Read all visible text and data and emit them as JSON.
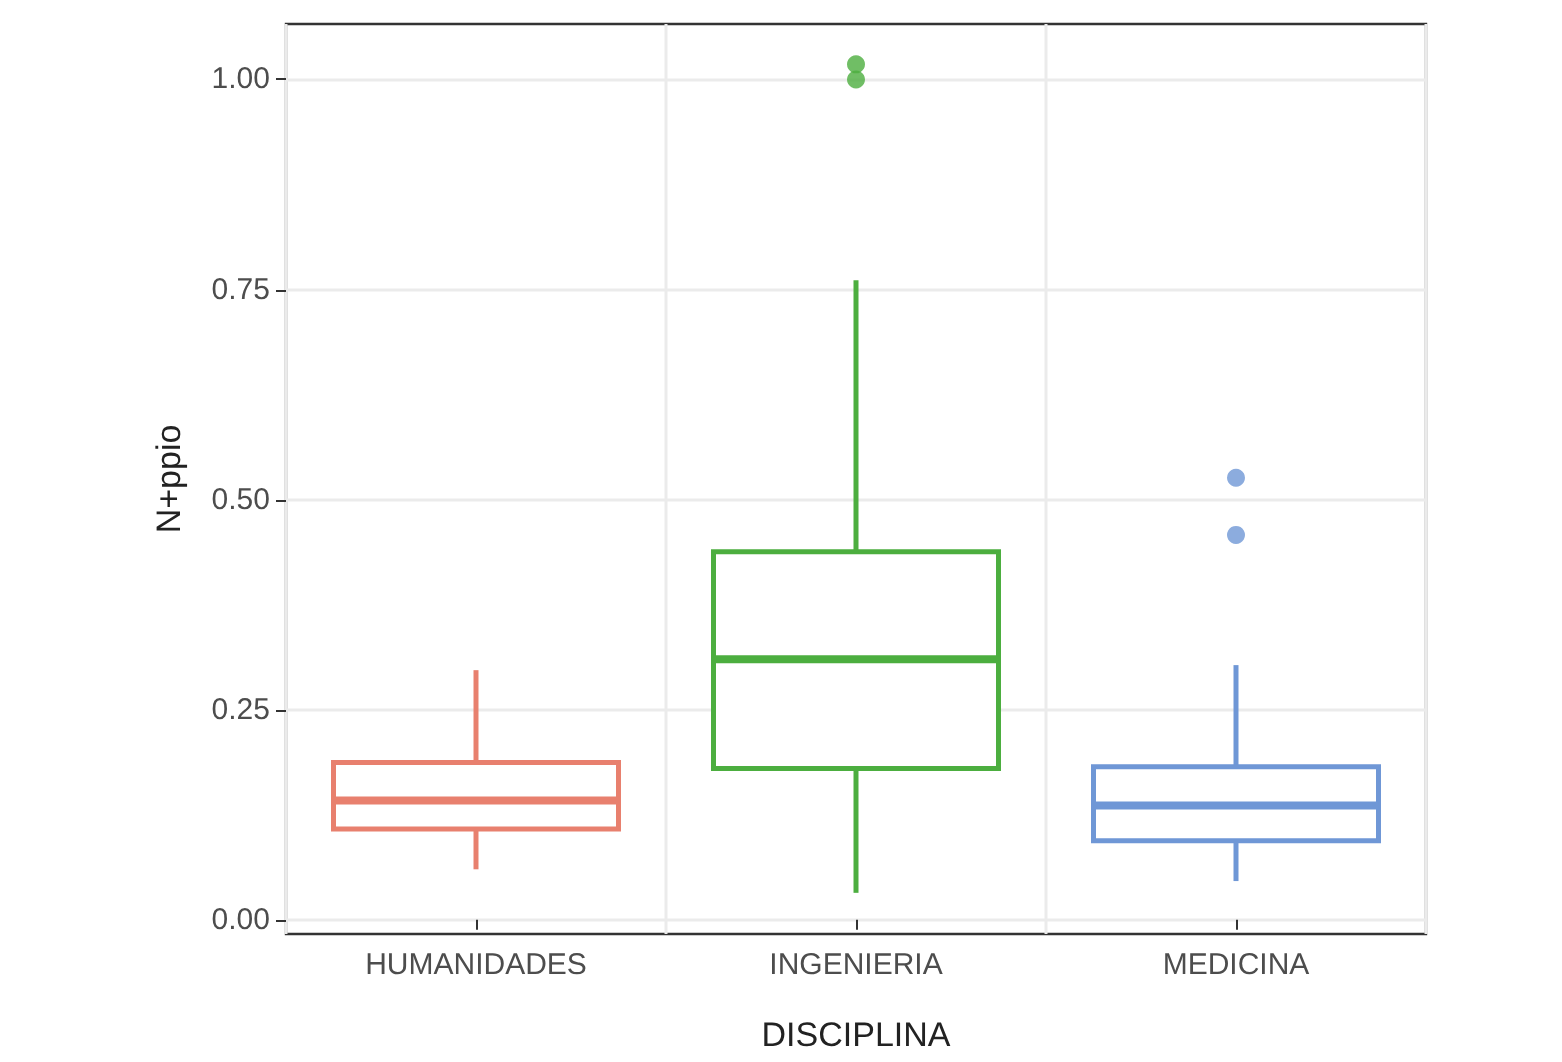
{
  "chart_data": {
    "type": "box",
    "xlabel": "DISCIPLINA",
    "ylabel": "N+ppio",
    "categories": [
      "HUMANIDADES",
      "INGENIERIA",
      "MEDICINA"
    ],
    "colors": [
      "#e8806e",
      "#4cae3f",
      "#6f97d6"
    ],
    "boxes": [
      {
        "low": 0.06,
        "q1": 0.108,
        "median": 0.142,
        "q3": 0.187,
        "high": 0.297
      },
      {
        "low": 0.032,
        "q1": 0.18,
        "median": 0.31,
        "q3": 0.438,
        "high": 0.761,
        "outliers": [
          1.0,
          1.018
        ]
      },
      {
        "low": 0.046,
        "q1": 0.094,
        "median": 0.136,
        "q3": 0.182,
        "high": 0.303,
        "outliers": [
          0.458,
          0.526
        ]
      }
    ],
    "ylim": [
      -0.017,
      1.066
    ],
    "yticks": [
      {
        "value": 0,
        "label": "0.00"
      },
      {
        "value": 0.25,
        "label": "0.25"
      },
      {
        "value": 0.5,
        "label": "0.50"
      },
      {
        "value": 0.75,
        "label": "0.75"
      },
      {
        "value": 1,
        "label": "1.00"
      }
    ],
    "grid": true
  }
}
